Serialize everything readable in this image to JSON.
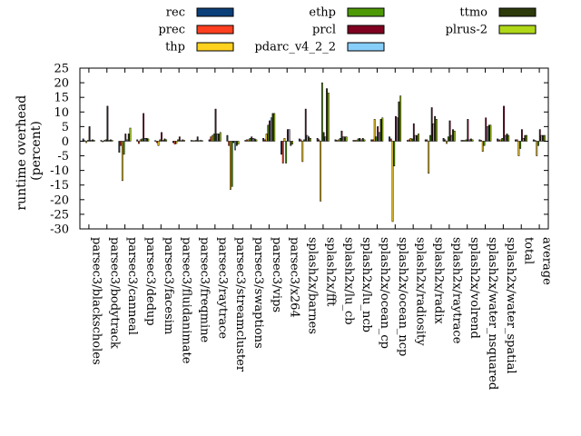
{
  "chart_data": {
    "type": "bar",
    "ylabel": "runtime overhead (percent)",
    "ylabel_lines": [
      "runtime overhead",
      "(percent)"
    ],
    "ylim": [
      -30,
      25
    ],
    "yticks": [
      25,
      20,
      15,
      10,
      5,
      0,
      -5,
      -10,
      -15,
      -20,
      -25,
      -30
    ],
    "grid": false,
    "legend_position": "top",
    "categories": [
      "parsec3/blackscholes",
      "parsec3/bodytrack",
      "parsec3/canneal",
      "parsec3/dedup",
      "parsec3/facesim",
      "parsec3/fluidanimate",
      "parsec3/freqmine",
      "parsec3/raytrace",
      "parsec3/streamcluster",
      "parsec3/swaptions",
      "parsec3/vips",
      "parsec3/x264",
      "splash2x/barnes",
      "splash2x/fft",
      "splash2x/lu_cb",
      "splash2x/lu_ncb",
      "splash2x/ocean_cp",
      "splash2x/ocean_ncp",
      "splash2x/radiosity",
      "splash2x/radix",
      "splash2x/raytrace",
      "splash2x/volrend",
      "splash2x/water_nsquared",
      "splash2x/water_spatial",
      "total",
      "average"
    ],
    "series": [
      {
        "name": "rec",
        "color": "#0b3f7a",
        "values": [
          0.8,
          0.3,
          -3.8,
          0.5,
          0.2,
          -0.5,
          0.3,
          0.5,
          2.0,
          0.3,
          1.0,
          -4.5,
          0.8,
          1.0,
          0.5,
          0.3,
          0.5,
          1.5,
          0.3,
          0.5,
          1.0,
          0.3,
          0.5,
          0.8,
          0.5,
          0.5
        ]
      },
      {
        "name": "prec",
        "color": "#ff4020",
        "values": [
          0.2,
          -0.2,
          -1.5,
          -0.8,
          -0.5,
          -1.0,
          0.2,
          1.5,
          -1.5,
          0.5,
          0.5,
          -7.5,
          0.5,
          0.5,
          0.3,
          0.3,
          0.5,
          0.8,
          0.5,
          0.5,
          0.5,
          0.3,
          0.3,
          0.5,
          0.5,
          0.3
        ]
      },
      {
        "name": "thp",
        "color": "#ffd21f",
        "values": [
          -0.5,
          0.3,
          -13.5,
          0.5,
          -1.5,
          -0.8,
          0.2,
          2.0,
          -16.5,
          0.5,
          2.5,
          1.0,
          -7.0,
          -20.5,
          0.5,
          0.3,
          7.5,
          -27.5,
          1.0,
          -11.0,
          -0.8,
          0.3,
          -3.5,
          0.5,
          -5.0,
          -5.0
        ]
      },
      {
        "name": "ethp",
        "color": "#4e9a06",
        "values": [
          0.3,
          0.5,
          -4.5,
          0.8,
          0.5,
          0.5,
          0.3,
          2.5,
          -15.5,
          1.0,
          5.5,
          -7.5,
          0.5,
          20.0,
          1.0,
          0.8,
          1.5,
          -8.5,
          0.8,
          2.0,
          1.5,
          0.5,
          -1.5,
          1.0,
          -2.5,
          -1.5
        ]
      },
      {
        "name": "prcl",
        "color": "#800020",
        "values": [
          5.0,
          12.0,
          2.5,
          9.5,
          3.0,
          1.5,
          1.5,
          11.0,
          -0.5,
          1.5,
          7.0,
          4.0,
          11.0,
          3.0,
          3.5,
          1.0,
          5.0,
          8.5,
          6.0,
          11.5,
          7.0,
          7.5,
          8.0,
          12.0,
          4.0,
          4.0
        ]
      },
      {
        "name": "pdarc_v4_2_2",
        "color": "#87cefa",
        "values": [
          0.3,
          0.3,
          0.5,
          1.0,
          0.3,
          0.2,
          0.2,
          2.5,
          -3.0,
          1.0,
          8.0,
          4.0,
          2.0,
          1.5,
          1.5,
          0.5,
          3.0,
          8.0,
          2.0,
          6.0,
          2.0,
          0.5,
          5.0,
          2.0,
          1.0,
          2.0
        ]
      },
      {
        "name": "ttmo",
        "color": "#2d3a0a",
        "values": [
          0.5,
          0.5,
          2.5,
          1.0,
          0.8,
          0.5,
          0.3,
          2.5,
          -1.5,
          0.8,
          9.5,
          -1.5,
          1.5,
          18.0,
          1.5,
          1.0,
          7.5,
          13.5,
          2.0,
          8.5,
          4.0,
          0.8,
          5.5,
          2.5,
          2.0,
          2.0
        ]
      },
      {
        "name": "plrus-2",
        "color": "#b0d818",
        "values": [
          0.3,
          0.3,
          4.5,
          0.8,
          0.5,
          0.3,
          0.2,
          3.0,
          -1.0,
          0.5,
          9.5,
          -1.0,
          1.0,
          16.5,
          1.5,
          0.5,
          8.0,
          15.5,
          2.5,
          7.5,
          3.5,
          0.5,
          5.5,
          2.0,
          2.0,
          2.0
        ]
      }
    ]
  }
}
